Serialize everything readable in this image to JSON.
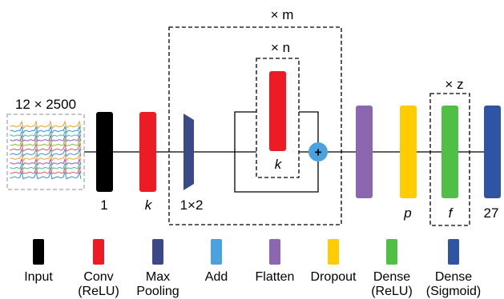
{
  "input_panel": {
    "title": "12 × 2500",
    "trace_colors": [
      "#f0a030",
      "#3a8fd8",
      "#3fbf9f",
      "#9b59b6",
      "#7fbf3f",
      "#e05a5a",
      "#3a8fd8",
      "#f0a030",
      "#9b59b6",
      "#3fbf9f",
      "#e05a5a",
      "#3a8fd8"
    ]
  },
  "repeat_labels": {
    "outer": "× m",
    "inner": "× n",
    "dense": "× z"
  },
  "layer_labels": {
    "input": "1",
    "conv": "k",
    "pool": "1×2",
    "inner_conv": "k",
    "dropout": "p",
    "dense_relu": "f",
    "dense_sigmoid": "27"
  },
  "add_symbol": "+",
  "colors": {
    "input": "#000000",
    "conv": "#ed1c24",
    "pool": "#3b4a86",
    "add": "#4aa3df",
    "flatten": "#8a67ae",
    "dropout": "#ffcc00",
    "dense_relu": "#4fbf45",
    "dense_sigmoid": "#2e54a3"
  },
  "legend": [
    {
      "key": "input",
      "line1": "Input",
      "line2": ""
    },
    {
      "key": "conv",
      "line1": "Conv",
      "line2": "(ReLU)"
    },
    {
      "key": "pool",
      "line1": "Max",
      "line2": "Pooling"
    },
    {
      "key": "add",
      "line1": "Add",
      "line2": ""
    },
    {
      "key": "flatten",
      "line1": "Flatten",
      "line2": ""
    },
    {
      "key": "dropout",
      "line1": "Dropout",
      "line2": ""
    },
    {
      "key": "dense_relu",
      "line1": "Dense",
      "line2": "(ReLU)"
    },
    {
      "key": "dense_sigmoid",
      "line1": "Dense",
      "line2": "(Sigmoid)"
    }
  ]
}
